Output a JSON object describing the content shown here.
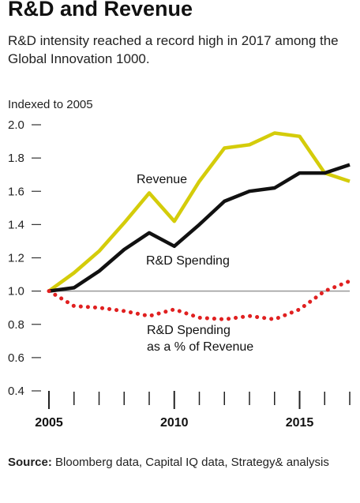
{
  "header": {
    "title": "R&D and Revenue",
    "subtitle": "R&D intensity reached a record high in 2017 among the Global Innovation 1000."
  },
  "footer": {
    "source_label": "Source:",
    "source_text": "Bloomberg data, Capital IQ data, Strategy& analysis"
  },
  "chart_data": {
    "type": "line",
    "ylabel": "Indexed to 2005",
    "ylim": [
      0.4,
      2.0
    ],
    "yticks": [
      "0.4",
      "0.6",
      "0.8",
      "1.0",
      "1.2",
      "1.4",
      "1.6",
      "1.8",
      "2.0"
    ],
    "xlim": [
      2005,
      2017
    ],
    "xticks": [
      2005,
      2010,
      2015
    ],
    "x": [
      2005,
      2006,
      2007,
      2008,
      2009,
      2010,
      2011,
      2012,
      2013,
      2014,
      2015,
      2016,
      2017
    ],
    "reference_line": 1.0,
    "grid": false,
    "series": [
      {
        "name": "Revenue",
        "color": "#d4cc0a",
        "style": "solid",
        "values": [
          1.0,
          1.11,
          1.24,
          1.41,
          1.59,
          1.42,
          1.66,
          1.86,
          1.88,
          1.95,
          1.93,
          1.71,
          1.66
        ]
      },
      {
        "name": "R&D Spending",
        "color": "#111111",
        "style": "solid",
        "values": [
          1.0,
          1.02,
          1.12,
          1.25,
          1.35,
          1.27,
          1.4,
          1.54,
          1.6,
          1.62,
          1.71,
          1.71,
          1.76
        ]
      },
      {
        "name": "R&D Spending as a % of Revenue",
        "label_lines": [
          "R&D Spending",
          "as a % of Revenue"
        ],
        "color": "#e02020",
        "style": "dotted",
        "values": [
          1.0,
          0.91,
          0.9,
          0.88,
          0.85,
          0.89,
          0.84,
          0.83,
          0.85,
          0.83,
          0.89,
          1.0,
          1.06
        ]
      }
    ]
  }
}
